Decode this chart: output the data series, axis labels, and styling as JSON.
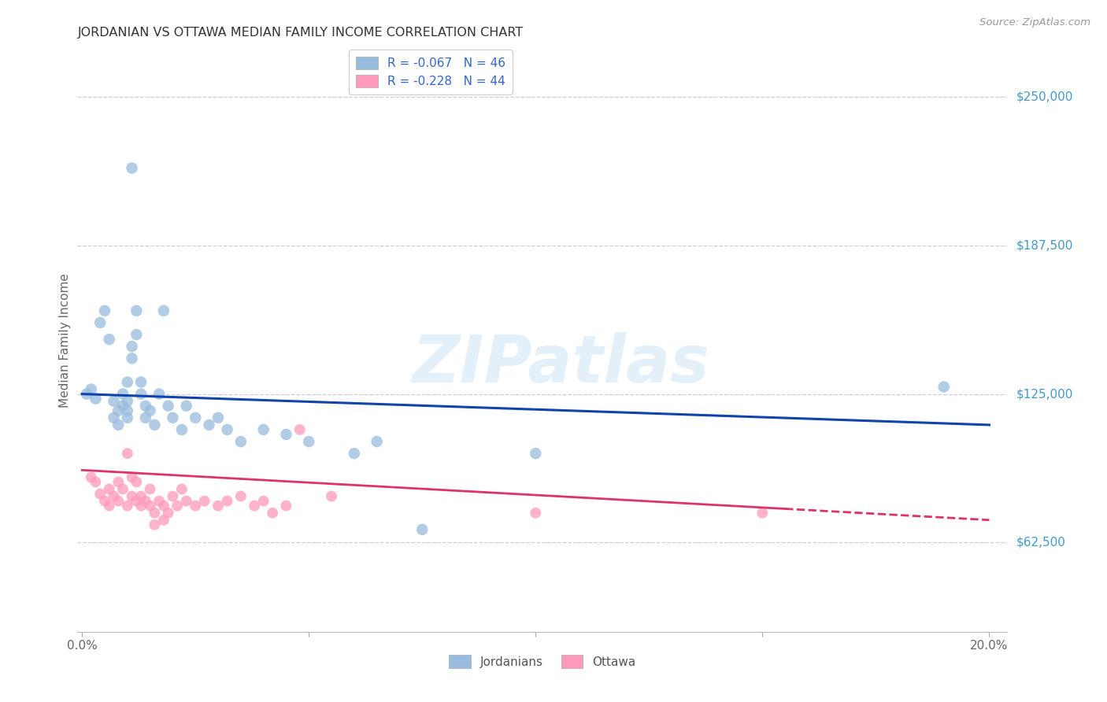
{
  "title": "JORDANIAN VS OTTAWA MEDIAN FAMILY INCOME CORRELATION CHART",
  "source": "Source: ZipAtlas.com",
  "ylabel": "Median Family Income",
  "watermark": "ZIPatlas",
  "legend_line1_r": "R = -0.067",
  "legend_line1_n": "N = 46",
  "legend_line2_r": "R = -0.228",
  "legend_line2_n": "N = 44",
  "blue_scatter_color": "#99BBDD",
  "pink_scatter_color": "#FF99BB",
  "blue_line_color": "#1144AA",
  "pink_line_color": "#DD3366",
  "grid_color": "#CCCCDD",
  "background_color": "#FFFFFF",
  "ytick_labels": [
    "$62,500",
    "$125,000",
    "$187,500",
    "$250,000"
  ],
  "ytick_values": [
    62500,
    125000,
    187500,
    250000
  ],
  "ylim": [
    25000,
    270000
  ],
  "xlim": [
    -0.001,
    0.204
  ],
  "pink_dash_cutoff": 0.155,
  "jordanian_x": [
    0.001,
    0.002,
    0.003,
    0.004,
    0.005,
    0.006,
    0.007,
    0.007,
    0.008,
    0.008,
    0.009,
    0.009,
    0.01,
    0.01,
    0.01,
    0.01,
    0.011,
    0.011,
    0.011,
    0.012,
    0.012,
    0.013,
    0.013,
    0.014,
    0.014,
    0.015,
    0.016,
    0.017,
    0.018,
    0.019,
    0.02,
    0.022,
    0.023,
    0.025,
    0.028,
    0.03,
    0.032,
    0.035,
    0.04,
    0.045,
    0.05,
    0.06,
    0.065,
    0.075,
    0.1,
    0.19
  ],
  "jordanian_y": [
    125000,
    127000,
    123000,
    155000,
    160000,
    148000,
    122000,
    115000,
    118000,
    112000,
    125000,
    120000,
    130000,
    122000,
    118000,
    115000,
    220000,
    145000,
    140000,
    160000,
    150000,
    125000,
    130000,
    120000,
    115000,
    118000,
    112000,
    125000,
    160000,
    120000,
    115000,
    110000,
    120000,
    115000,
    112000,
    115000,
    110000,
    105000,
    110000,
    108000,
    105000,
    100000,
    105000,
    68000,
    100000,
    128000
  ],
  "ottawa_x": [
    0.002,
    0.003,
    0.004,
    0.005,
    0.006,
    0.006,
    0.007,
    0.008,
    0.008,
    0.009,
    0.01,
    0.01,
    0.011,
    0.011,
    0.012,
    0.012,
    0.013,
    0.013,
    0.014,
    0.015,
    0.015,
    0.016,
    0.016,
    0.017,
    0.018,
    0.018,
    0.019,
    0.02,
    0.021,
    0.022,
    0.023,
    0.025,
    0.027,
    0.03,
    0.032,
    0.035,
    0.038,
    0.04,
    0.042,
    0.045,
    0.048,
    0.055,
    0.1,
    0.15
  ],
  "ottawa_y": [
    90000,
    88000,
    83000,
    80000,
    85000,
    78000,
    82000,
    88000,
    80000,
    85000,
    100000,
    78000,
    90000,
    82000,
    88000,
    80000,
    82000,
    78000,
    80000,
    85000,
    78000,
    75000,
    70000,
    80000,
    78000,
    72000,
    75000,
    82000,
    78000,
    85000,
    80000,
    78000,
    80000,
    78000,
    80000,
    82000,
    78000,
    80000,
    75000,
    78000,
    110000,
    82000,
    75000,
    75000
  ]
}
